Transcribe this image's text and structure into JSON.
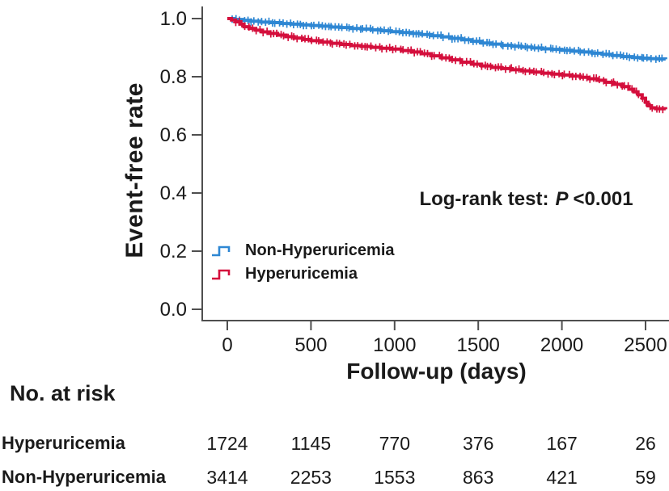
{
  "chart_data": {
    "type": "line",
    "subtype": "kaplan-meier-step-curves-with-censor-marks",
    "title": "",
    "xlabel": "Follow-up (days)",
    "ylabel": "Event-free rate",
    "xlim": [
      0,
      2620
    ],
    "ylim": [
      0.0,
      1.0
    ],
    "x_ticks": [
      0,
      500,
      1000,
      1500,
      2000,
      2500
    ],
    "x_tick_labels": [
      "0",
      "500",
      "1000",
      "1500",
      "2000",
      "2500"
    ],
    "y_ticks": [
      1.0,
      0.8,
      0.6,
      0.4,
      0.2,
      0.0
    ],
    "y_tick_labels": [
      "1.0",
      "0.8",
      "0.6",
      "0.4",
      "0.2",
      "0.0"
    ],
    "grid": false,
    "legend_position": "inside-lower-left",
    "annotation": "Log-rank test: P <0.001",
    "annotation_parts": {
      "prefix": "Log-rank test:",
      "p_symbol": "P",
      "value": "<0.001"
    },
    "series": [
      {
        "name": "Non-Hyperuricemia",
        "color": "#2E87D3",
        "points": [
          [
            0,
            1.0
          ],
          [
            40,
            0.997
          ],
          [
            90,
            0.994
          ],
          [
            140,
            0.991
          ],
          [
            200,
            0.988
          ],
          [
            260,
            0.986
          ],
          [
            320,
            0.983
          ],
          [
            380,
            0.981
          ],
          [
            440,
            0.978
          ],
          [
            500,
            0.976
          ],
          [
            560,
            0.974
          ],
          [
            620,
            0.971
          ],
          [
            680,
            0.969
          ],
          [
            740,
            0.966
          ],
          [
            800,
            0.964
          ],
          [
            860,
            0.961
          ],
          [
            920,
            0.958
          ],
          [
            980,
            0.955
          ],
          [
            1040,
            0.952
          ],
          [
            1100,
            0.949
          ],
          [
            1160,
            0.945
          ],
          [
            1220,
            0.941
          ],
          [
            1280,
            0.937
          ],
          [
            1340,
            0.932
          ],
          [
            1400,
            0.927
          ],
          [
            1460,
            0.922
          ],
          [
            1520,
            0.916
          ],
          [
            1580,
            0.912
          ],
          [
            1640,
            0.908
          ],
          [
            1700,
            0.905
          ],
          [
            1760,
            0.902
          ],
          [
            1820,
            0.899
          ],
          [
            1880,
            0.896
          ],
          [
            1940,
            0.894
          ],
          [
            2000,
            0.891
          ],
          [
            2060,
            0.888
          ],
          [
            2120,
            0.885
          ],
          [
            2180,
            0.881
          ],
          [
            2240,
            0.877
          ],
          [
            2300,
            0.873
          ],
          [
            2360,
            0.869
          ],
          [
            2420,
            0.866
          ],
          [
            2470,
            0.864
          ],
          [
            2520,
            0.862
          ],
          [
            2570,
            0.861
          ],
          [
            2620,
            0.86
          ]
        ]
      },
      {
        "name": "Hyperuricemia",
        "color": "#D40F3C",
        "points": [
          [
            0,
            1.0
          ],
          [
            25,
            0.995
          ],
          [
            50,
            0.989
          ],
          [
            75,
            0.981
          ],
          [
            100,
            0.972
          ],
          [
            130,
            0.966
          ],
          [
            170,
            0.96
          ],
          [
            210,
            0.954
          ],
          [
            250,
            0.949
          ],
          [
            300,
            0.943
          ],
          [
            350,
            0.938
          ],
          [
            400,
            0.933
          ],
          [
            450,
            0.928
          ],
          [
            500,
            0.924
          ],
          [
            560,
            0.919
          ],
          [
            620,
            0.915
          ],
          [
            680,
            0.911
          ],
          [
            740,
            0.907
          ],
          [
            800,
            0.904
          ],
          [
            860,
            0.901
          ],
          [
            920,
            0.898
          ],
          [
            980,
            0.895
          ],
          [
            1040,
            0.89
          ],
          [
            1100,
            0.885
          ],
          [
            1160,
            0.879
          ],
          [
            1220,
            0.872
          ],
          [
            1280,
            0.865
          ],
          [
            1340,
            0.858
          ],
          [
            1400,
            0.85
          ],
          [
            1460,
            0.843
          ],
          [
            1520,
            0.837
          ],
          [
            1580,
            0.832
          ],
          [
            1640,
            0.828
          ],
          [
            1700,
            0.824
          ],
          [
            1760,
            0.82
          ],
          [
            1820,
            0.816
          ],
          [
            1880,
            0.812
          ],
          [
            1940,
            0.809
          ],
          [
            2000,
            0.806
          ],
          [
            2060,
            0.802
          ],
          [
            2110,
            0.798
          ],
          [
            2160,
            0.793
          ],
          [
            2210,
            0.788
          ],
          [
            2260,
            0.781
          ],
          [
            2310,
            0.774
          ],
          [
            2360,
            0.766
          ],
          [
            2400,
            0.757
          ],
          [
            2430,
            0.748
          ],
          [
            2455,
            0.738
          ],
          [
            2480,
            0.726
          ],
          [
            2500,
            0.712
          ],
          [
            2515,
            0.7
          ],
          [
            2535,
            0.693
          ],
          [
            2560,
            0.69
          ],
          [
            2620,
            0.688
          ]
        ]
      }
    ]
  },
  "risk_table": {
    "title": "No. at risk",
    "columns": [
      0,
      500,
      1000,
      1500,
      2000,
      2500
    ],
    "rows": [
      {
        "label": "Hyperuricemia",
        "values": [
          "1724",
          "1145",
          "770",
          "376",
          "167",
          "26"
        ]
      },
      {
        "label": "Non-Hyperuricemia",
        "values": [
          "3414",
          "2253",
          "1553",
          "863",
          "421",
          "59"
        ]
      }
    ]
  },
  "colors": {
    "non_hyperuricemia": "#2E87D3",
    "hyperuricemia": "#D40F3C",
    "axis": "#4f4f4f",
    "text": "#1a1a1a"
  }
}
